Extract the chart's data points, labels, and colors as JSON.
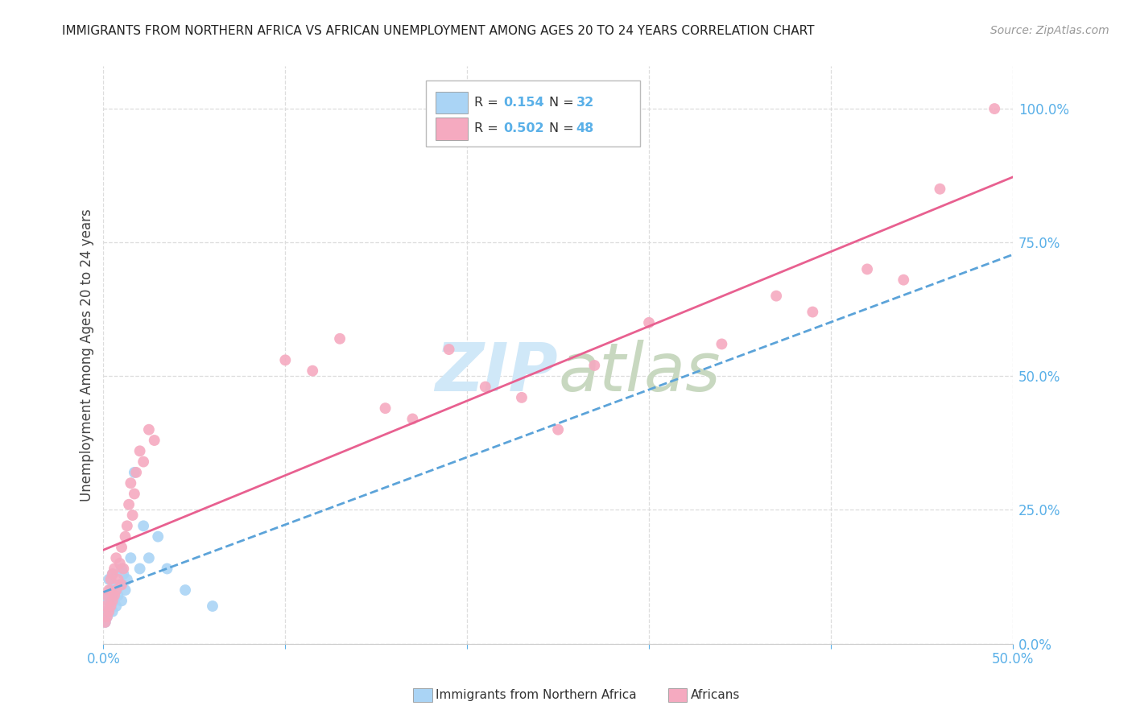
{
  "title": "IMMIGRANTS FROM NORTHERN AFRICA VS AFRICAN UNEMPLOYMENT AMONG AGES 20 TO 24 YEARS CORRELATION CHART",
  "source": "Source: ZipAtlas.com",
  "ylabel": "Unemployment Among Ages 20 to 24 years",
  "ylabel_right_ticks": [
    "0.0%",
    "25.0%",
    "50.0%",
    "75.0%",
    "100.0%"
  ],
  "ylabel_right_vals": [
    0.0,
    0.25,
    0.5,
    0.75,
    1.0
  ],
  "xlim": [
    0.0,
    0.5
  ],
  "ylim": [
    0.0,
    1.08
  ],
  "legend_blue_r": "0.154",
  "legend_blue_n": "32",
  "legend_pink_r": "0.502",
  "legend_pink_n": "48",
  "blue_x": [
    0.001,
    0.001,
    0.002,
    0.002,
    0.003,
    0.003,
    0.003,
    0.004,
    0.004,
    0.005,
    0.005,
    0.005,
    0.006,
    0.006,
    0.007,
    0.007,
    0.008,
    0.009,
    0.01,
    0.01,
    0.011,
    0.012,
    0.013,
    0.015,
    0.017,
    0.02,
    0.022,
    0.025,
    0.03,
    0.035,
    0.045,
    0.06
  ],
  "blue_y": [
    0.04,
    0.06,
    0.05,
    0.08,
    0.06,
    0.09,
    0.12,
    0.07,
    0.1,
    0.06,
    0.09,
    0.13,
    0.08,
    0.11,
    0.07,
    0.1,
    0.09,
    0.11,
    0.08,
    0.14,
    0.13,
    0.1,
    0.12,
    0.16,
    0.32,
    0.14,
    0.22,
    0.16,
    0.2,
    0.14,
    0.1,
    0.07
  ],
  "pink_x": [
    0.001,
    0.001,
    0.002,
    0.002,
    0.003,
    0.003,
    0.004,
    0.004,
    0.005,
    0.005,
    0.006,
    0.006,
    0.007,
    0.007,
    0.008,
    0.009,
    0.01,
    0.01,
    0.011,
    0.012,
    0.013,
    0.014,
    0.015,
    0.016,
    0.017,
    0.018,
    0.02,
    0.022,
    0.025,
    0.028,
    0.1,
    0.115,
    0.13,
    0.155,
    0.17,
    0.19,
    0.21,
    0.23,
    0.25,
    0.27,
    0.3,
    0.34,
    0.37,
    0.39,
    0.42,
    0.44,
    0.46,
    0.49
  ],
  "pink_y": [
    0.04,
    0.07,
    0.05,
    0.09,
    0.06,
    0.1,
    0.07,
    0.12,
    0.08,
    0.13,
    0.09,
    0.14,
    0.1,
    0.16,
    0.12,
    0.15,
    0.11,
    0.18,
    0.14,
    0.2,
    0.22,
    0.26,
    0.3,
    0.24,
    0.28,
    0.32,
    0.36,
    0.34,
    0.4,
    0.38,
    0.53,
    0.51,
    0.57,
    0.44,
    0.42,
    0.55,
    0.48,
    0.46,
    0.4,
    0.52,
    0.6,
    0.56,
    0.65,
    0.62,
    0.7,
    0.68,
    0.85,
    1.0
  ],
  "blue_color": "#aad4f5",
  "pink_color": "#f5aac0",
  "blue_line_color": "#5ba3d9",
  "pink_line_color": "#e86090",
  "background_color": "#ffffff",
  "grid_color": "#dddddd",
  "title_color": "#222222",
  "source_color": "#999999",
  "axis_label_color": "#444444",
  "right_tick_color": "#5ab0e8",
  "watermark_zip_color": "#d0e8f8",
  "watermark_atlas_color": "#c8d8c0"
}
